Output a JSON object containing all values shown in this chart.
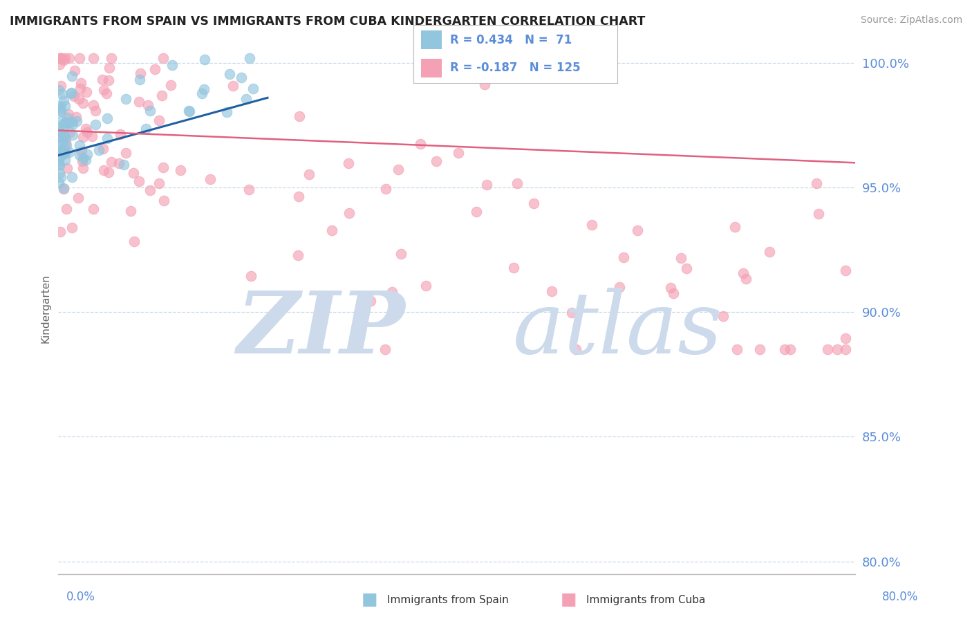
{
  "title": "IMMIGRANTS FROM SPAIN VS IMMIGRANTS FROM CUBA KINDERGARTEN CORRELATION CHART",
  "source": "Source: ZipAtlas.com",
  "ylabel": "Kindergarten",
  "xmin": 0.0,
  "xmax": 0.8,
  "ymin": 0.795,
  "ymax": 1.008,
  "yticks": [
    0.8,
    0.85,
    0.9,
    0.95,
    1.0
  ],
  "ytick_labels": [
    "80.0%",
    "85.0%",
    "90.0%",
    "95.0%",
    "100.0%"
  ],
  "legend_R_spain": "R = 0.434",
  "legend_N_spain": "N =  71",
  "legend_R_cuba": "R = -0.187",
  "legend_N_cuba": "N = 125",
  "color_spain": "#92c5de",
  "color_cuba": "#f4a0b5",
  "trend_color_spain": "#2060a0",
  "trend_color_cuba": "#e06080",
  "grid_color": "#c8d8ea",
  "axis_label_color": "#5b8dd9",
  "background_color": "#ffffff",
  "title_color": "#222222",
  "watermark_color": "#ccdaeb"
}
